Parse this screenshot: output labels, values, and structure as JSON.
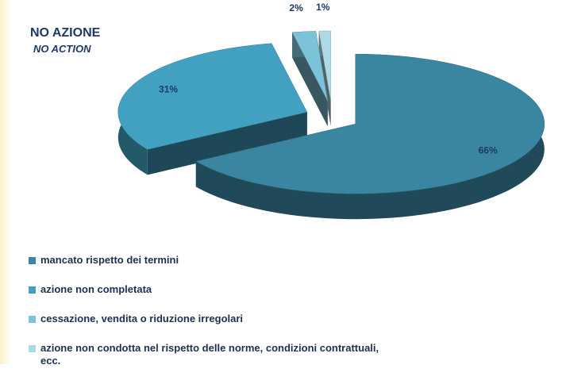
{
  "chart_data": {
    "type": "pie",
    "title": "NO AZIONE",
    "subtitle": "NO ACTION",
    "categories": [
      "mancato rispetto dei termini",
      "azione non completata",
      "cessazione, vendita o riduzione irregolari",
      "azione non condotta nel rispetto delle norme, condizioni contrattuali, ecc."
    ],
    "values": [
      66,
      31,
      2,
      1
    ],
    "value_labels": [
      "66%",
      "31%",
      "2%",
      "1%"
    ],
    "colors": [
      "#3a86a1",
      "#42a1c1",
      "#7cc2d8",
      "#add9e7"
    ],
    "legend": "bottom"
  }
}
